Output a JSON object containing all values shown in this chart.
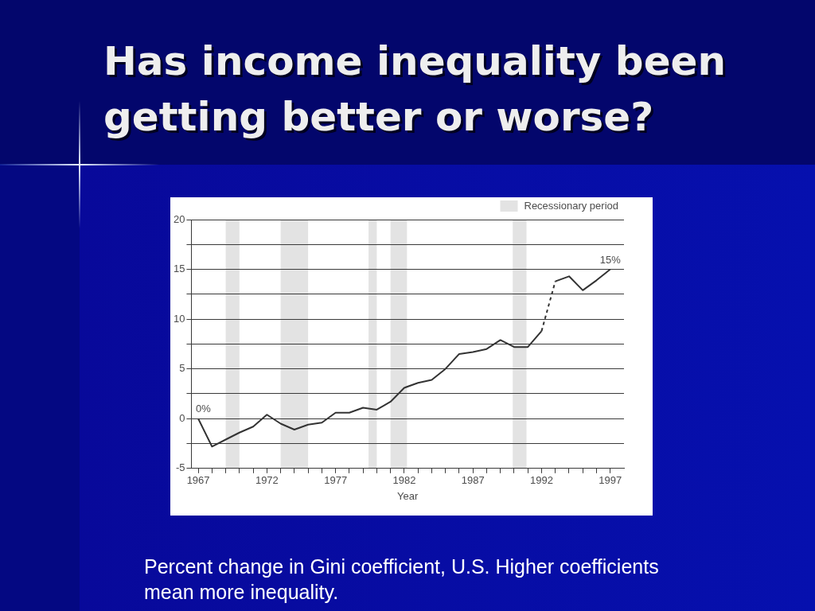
{
  "chart_data": {
    "type": "line",
    "title": "Has income inequality been getting better or worse?",
    "xlabel": "Year",
    "series": [
      {
        "x": [
          1967,
          1968,
          1969,
          1970,
          1971,
          1972,
          1973,
          1974,
          1975,
          1976,
          1977,
          1978,
          1979,
          1980,
          1981,
          1982,
          1983,
          1984,
          1985,
          1986,
          1987,
          1988,
          1989,
          1990,
          1991,
          1992
        ],
        "values": [
          0,
          -2.8,
          -2.1,
          -1.4,
          -0.8,
          0.4,
          -0.5,
          -1.1,
          -0.6,
          -0.4,
          0.6,
          0.6,
          1.1,
          0.9,
          1.7,
          3.1,
          3.6,
          3.9,
          5.0,
          6.5,
          6.7,
          7.0,
          7.9,
          7.2,
          7.2,
          8.8
        ],
        "color": "#333333",
        "line_style": "solid"
      },
      {
        "x": [
          1992,
          1993
        ],
        "values": [
          8.8,
          13.8
        ],
        "color": "#333333",
        "line_style": "dashed"
      },
      {
        "x": [
          1993,
          1994,
          1995,
          1996,
          1997
        ],
        "values": [
          13.8,
          14.3,
          12.9,
          13.9,
          15.0
        ],
        "color": "#333333",
        "line_style": "solid"
      }
    ],
    "xlim": [
      1966.5,
      1998
    ],
    "ylim": [
      -5,
      20
    ],
    "xticks": [
      1967,
      {
        "value": 1968,
        "label": null
      },
      {
        "value": 1969,
        "label": null
      },
      {
        "value": 1970,
        "label": null
      },
      {
        "value": 1971,
        "label": null
      },
      1972,
      {
        "value": 1973,
        "label": null
      },
      {
        "value": 1974,
        "label": null
      },
      {
        "value": 1975,
        "label": null
      },
      {
        "value": 1976,
        "label": null
      },
      1977,
      {
        "value": 1978,
        "label": null
      },
      {
        "value": 1979,
        "label": null
      },
      {
        "value": 1980,
        "label": null
      },
      {
        "value": 1981,
        "label": null
      },
      1982,
      {
        "value": 1983,
        "label": null
      },
      {
        "value": 1984,
        "label": null
      },
      {
        "value": 1985,
        "label": null
      },
      {
        "value": 1986,
        "label": null
      },
      1987,
      {
        "value": 1988,
        "label": null
      },
      {
        "value": 1989,
        "label": null
      },
      {
        "value": 1990,
        "label": null
      },
      {
        "value": 1991,
        "label": null
      },
      1992,
      {
        "value": 1993,
        "label": null
      },
      {
        "value": 1994,
        "label": null
      },
      {
        "value": 1995,
        "label": null
      },
      {
        "value": 1996,
        "label": null
      },
      1997
    ],
    "yticks": [
      -5,
      {
        "value": -2.5,
        "label": null
      },
      0,
      {
        "value": 2.5,
        "label": null
      },
      5,
      {
        "value": 7.5,
        "label": null
      },
      10,
      {
        "value": 12.5,
        "label": null
      },
      15,
      {
        "value": 17.5,
        "label": null
      },
      20
    ],
    "grid": "y",
    "legend": "top right",
    "marker": "none",
    "bands": [
      {
        "axis": "x",
        "from": 1969,
        "to": 1970,
        "color": "#e3e3e3",
        "label": "Recessionary period"
      },
      {
        "axis": "x",
        "from": 1973,
        "to": 1975,
        "color": "#e3e3e3"
      },
      {
        "axis": "x",
        "from": 1979.4,
        "to": 1980,
        "color": "#e3e3e3"
      },
      {
        "axis": "x",
        "from": 1981,
        "to": 1982.2,
        "color": "#e3e3e3"
      },
      {
        "axis": "x",
        "from": 1989.9,
        "to": 1990.9,
        "color": "#e3e3e3"
      }
    ],
    "annotations": [
      {
        "text": "0%",
        "x": 1967,
        "y": 0
      },
      {
        "text": "15%",
        "x": 1997,
        "y": 15
      },
      "Percent change in Gini coefficient, U.S. Higher coefficients mean more inequality."
    ]
  }
}
